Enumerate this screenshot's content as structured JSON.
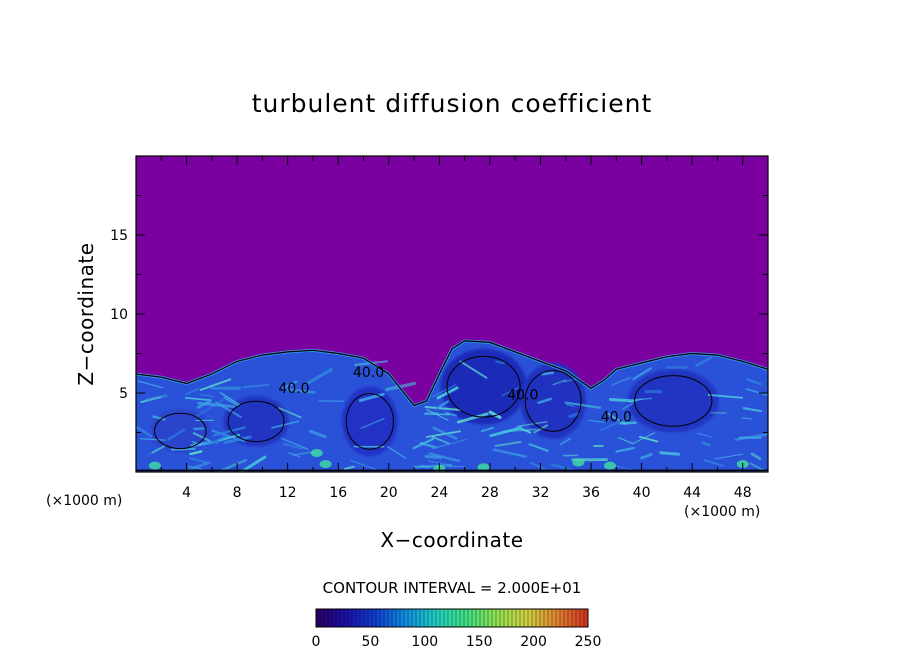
{
  "chart_data": {
    "type": "heatmap",
    "title": "turbulent diffusion coefficient",
    "xlabel": "X−coordinate",
    "ylabel": "Z−coordinate",
    "x_unit": "(×1000 m)",
    "y_unit": "(×1000 m)",
    "xlim": [
      0,
      50
    ],
    "ylim": [
      0,
      20
    ],
    "x_ticks": [
      4,
      8,
      12,
      16,
      20,
      24,
      28,
      32,
      36,
      40,
      44,
      48
    ],
    "y_ticks": [
      5,
      10,
      15
    ],
    "contour_interval_label": "CONTOUR INTERVAL = 2.000E+01",
    "contour_labels": [
      {
        "text": "40.0",
        "x": 12.5,
        "y": 5.0
      },
      {
        "text": "40.0",
        "x": 18.4,
        "y": 6.0
      },
      {
        "text": "40.0",
        "x": 30.6,
        "y": 4.6
      },
      {
        "text": "40.0",
        "x": 38.0,
        "y": 3.2
      }
    ],
    "colorbar": {
      "range": [
        0,
        250
      ],
      "ticks": [
        0,
        50,
        100,
        150,
        200,
        250
      ],
      "colors": [
        "#2a0060",
        "#1a10a8",
        "#1040d0",
        "#1090e0",
        "#20d0c0",
        "#40e080",
        "#90e050",
        "#d0d040",
        "#e08030",
        "#d03020"
      ]
    },
    "background_color": "#7a00a0",
    "turbulent_layer_top": [
      {
        "x": 0,
        "z": 6.2
      },
      {
        "x": 2,
        "z": 6.0
      },
      {
        "x": 4,
        "z": 5.6
      },
      {
        "x": 6,
        "z": 6.2
      },
      {
        "x": 8,
        "z": 7.0
      },
      {
        "x": 10,
        "z": 7.4
      },
      {
        "x": 12,
        "z": 7.6
      },
      {
        "x": 14,
        "z": 7.7
      },
      {
        "x": 16,
        "z": 7.5
      },
      {
        "x": 18,
        "z": 7.2
      },
      {
        "x": 20,
        "z": 6.2
      },
      {
        "x": 22,
        "z": 4.2
      },
      {
        "x": 23,
        "z": 4.5
      },
      {
        "x": 24,
        "z": 6.2
      },
      {
        "x": 25,
        "z": 7.8
      },
      {
        "x": 26,
        "z": 8.3
      },
      {
        "x": 28,
        "z": 8.2
      },
      {
        "x": 30,
        "z": 7.6
      },
      {
        "x": 32,
        "z": 7.0
      },
      {
        "x": 34,
        "z": 6.4
      },
      {
        "x": 36,
        "z": 5.3
      },
      {
        "x": 37,
        "z": 5.8
      },
      {
        "x": 38,
        "z": 6.5
      },
      {
        "x": 40,
        "z": 6.9
      },
      {
        "x": 42,
        "z": 7.3
      },
      {
        "x": 44,
        "z": 7.5
      },
      {
        "x": 46,
        "z": 7.4
      },
      {
        "x": 48,
        "z": 7.0
      },
      {
        "x": 50,
        "z": 6.5
      }
    ]
  }
}
